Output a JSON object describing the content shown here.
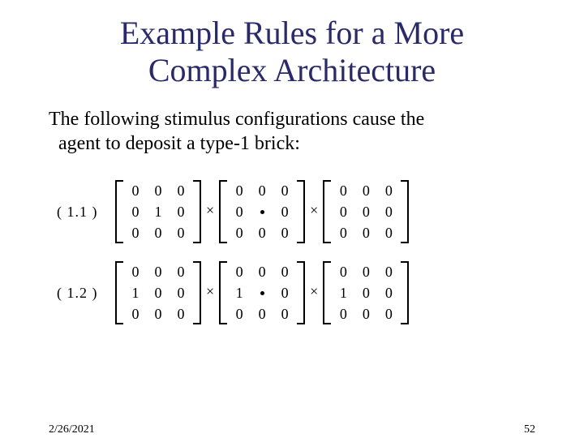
{
  "title_color": "#2a2a6a",
  "title_line1": "Example Rules for a More",
  "title_line2": "Complex Architecture",
  "body_line1": "The following stimulus configurations cause the",
  "body_line2": "agent to deposit a type-1 brick:",
  "footer_date": "2/26/2021",
  "footer_page": "52",
  "bracket_height": 78,
  "bracket_width": 10,
  "rules": [
    {
      "label": "( 1.1  )",
      "matrices": [
        {
          "cells": [
            "0",
            "0",
            "0",
            "0",
            "1",
            "0",
            "0",
            "0",
            "0"
          ]
        },
        {
          "cells": [
            "0",
            "0",
            "0",
            "0",
            "•",
            "0",
            "0",
            "0",
            "0"
          ]
        },
        {
          "cells": [
            "0",
            "0",
            "0",
            "0",
            "0",
            "0",
            "0",
            "0",
            "0"
          ]
        }
      ]
    },
    {
      "label": "( 1.2  )",
      "matrices": [
        {
          "cells": [
            "0",
            "0",
            "0",
            "1",
            "0",
            "0",
            "0",
            "0",
            "0"
          ]
        },
        {
          "cells": [
            "0",
            "0",
            "0",
            "1",
            "•",
            "0",
            "0",
            "0",
            "0"
          ]
        },
        {
          "cells": [
            "0",
            "0",
            "0",
            "1",
            "0",
            "0",
            "0",
            "0",
            "0"
          ]
        }
      ]
    }
  ],
  "operator": "×"
}
